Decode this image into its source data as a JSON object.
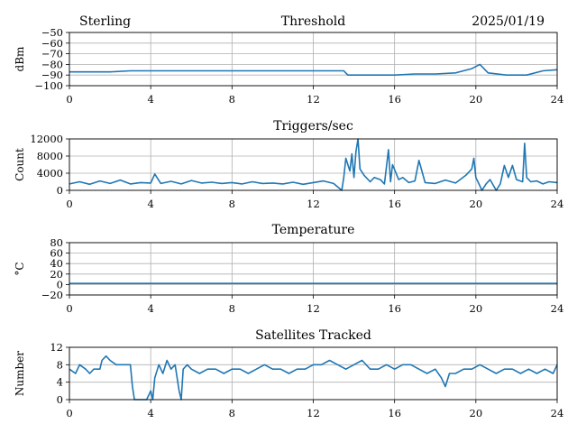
{
  "header": {
    "station": "Sterling",
    "date": "2025/01/19"
  },
  "colors": {
    "line": "#1f77b4",
    "grid": "#b0b0b0",
    "frame": "#000000"
  },
  "chart_data": [
    {
      "type": "line",
      "title": "Threshold",
      "ylabel": "dBm",
      "xlim": [
        0,
        24
      ],
      "ylim": [
        -100,
        -50
      ],
      "xticks": [
        0,
        4,
        8,
        12,
        16,
        20,
        24
      ],
      "yticks": [
        -100,
        -90,
        -80,
        -70,
        -60,
        -50
      ],
      "ytick_labels": [
        "−100",
        "−90",
        "−80",
        "−70",
        "−60",
        "−50"
      ],
      "grid": true,
      "series": [
        {
          "x": [
            0,
            1,
            2,
            3,
            4,
            5,
            6,
            7,
            8,
            9,
            10,
            11,
            12,
            13.5,
            13.7,
            15,
            16,
            17,
            18,
            19,
            19.8,
            20.2,
            20.6,
            21.5,
            22.5,
            23.3,
            24
          ],
          "y": [
            -87,
            -87,
            -87,
            -86,
            -86,
            -86,
            -86,
            -86,
            -86,
            -86,
            -86,
            -86,
            -86,
            -86,
            -90,
            -90,
            -90,
            -89,
            -89,
            -88,
            -84,
            -80,
            -88,
            -90,
            -90,
            -86,
            -85
          ]
        }
      ]
    },
    {
      "type": "line",
      "title": "Triggers/sec",
      "ylabel": "Count",
      "xlim": [
        0,
        24
      ],
      "ylim": [
        0,
        12000
      ],
      "xticks": [
        0,
        4,
        8,
        12,
        16,
        20,
        24
      ],
      "yticks": [
        0,
        4000,
        8000,
        12000
      ],
      "ytick_labels": [
        "0",
        "4000",
        "8000",
        "12000"
      ],
      "grid": true,
      "series": [
        {
          "x": [
            0,
            0.5,
            1.0,
            1.5,
            2.0,
            2.5,
            3.0,
            3.5,
            4.0,
            4.2,
            4.5,
            5.0,
            5.5,
            6.0,
            6.5,
            7.0,
            7.5,
            8.0,
            8.5,
            9.0,
            9.5,
            10.0,
            10.5,
            11.0,
            11.5,
            12.0,
            12.5,
            13.0,
            13.4,
            13.5,
            13.6,
            13.8,
            13.9,
            14.0,
            14.1,
            14.2,
            14.3,
            14.5,
            14.8,
            15.0,
            15.3,
            15.5,
            15.7,
            15.8,
            15.9,
            16.2,
            16.4,
            16.7,
            17.0,
            17.2,
            17.5,
            18.0,
            18.5,
            19.0,
            19.5,
            19.8,
            19.9,
            20.0,
            20.1,
            20.3,
            20.5,
            20.7,
            21.0,
            21.2,
            21.4,
            21.6,
            21.8,
            22.0,
            22.3,
            22.4,
            22.5,
            22.7,
            23.0,
            23.3,
            23.6,
            24.0
          ],
          "y": [
            1500,
            2000,
            1400,
            2200,
            1600,
            2400,
            1500,
            1800,
            1700,
            3800,
            1600,
            2100,
            1500,
            2300,
            1700,
            1900,
            1600,
            1800,
            1500,
            2000,
            1600,
            1700,
            1500,
            1900,
            1400,
            1800,
            2200,
            1600,
            0,
            3000,
            7500,
            4500,
            8500,
            3000,
            9000,
            12000,
            5000,
            3500,
            2000,
            3000,
            2500,
            1500,
            9500,
            2000,
            6000,
            2500,
            3000,
            1800,
            2200,
            7000,
            1800,
            1600,
            2400,
            1700,
            3500,
            5000,
            7500,
            3000,
            2000,
            0,
            1500,
            2500,
            0,
            1500,
            5800,
            3000,
            5800,
            2500,
            2000,
            11000,
            3000,
            2000,
            2200,
            1500,
            2000,
            1800
          ]
        }
      ]
    },
    {
      "type": "line",
      "title": "Temperature",
      "ylabel": "°C",
      "xlim": [
        0,
        24
      ],
      "ylim": [
        -20,
        80
      ],
      "xticks": [
        0,
        4,
        8,
        12,
        16,
        20,
        24
      ],
      "yticks": [
        -20,
        0,
        20,
        40,
        60,
        80
      ],
      "ytick_labels": [
        "−20",
        "0",
        "20",
        "40",
        "60",
        "80"
      ],
      "grid": true,
      "series": [
        {
          "x": [
            0,
            6,
            12,
            18,
            24
          ],
          "y": [
            2,
            2,
            2,
            2,
            2
          ]
        }
      ]
    },
    {
      "type": "line",
      "title": "Satellites Tracked",
      "ylabel": "Number",
      "xlim": [
        0,
        24
      ],
      "ylim": [
        0,
        12
      ],
      "xticks": [
        0,
        4,
        8,
        12,
        16,
        20,
        24
      ],
      "yticks": [
        0,
        4,
        8,
        12
      ],
      "ytick_labels": [
        "0",
        "4",
        "8",
        "12"
      ],
      "grid": true,
      "series": [
        {
          "x": [
            0,
            0.3,
            0.5,
            0.8,
            1.0,
            1.2,
            1.5,
            1.6,
            1.8,
            2.0,
            2.3,
            2.6,
            3.0,
            3.1,
            3.2,
            3.6,
            3.8,
            3.9,
            4.0,
            4.1,
            4.2,
            4.4,
            4.6,
            4.8,
            5.0,
            5.2,
            5.4,
            5.5,
            5.6,
            5.8,
            6.0,
            6.4,
            6.8,
            7.2,
            7.6,
            8.0,
            8.4,
            8.8,
            9.2,
            9.6,
            10.0,
            10.4,
            10.8,
            11.2,
            11.6,
            12.0,
            12.4,
            12.8,
            13.2,
            13.6,
            14.0,
            14.4,
            14.8,
            15.2,
            15.6,
            16.0,
            16.4,
            16.8,
            17.2,
            17.6,
            18.0,
            18.3,
            18.5,
            18.7,
            19.0,
            19.4,
            19.8,
            20.2,
            20.6,
            21.0,
            21.4,
            21.8,
            22.2,
            22.6,
            23.0,
            23.4,
            23.8,
            24.0
          ],
          "y": [
            7,
            6,
            8,
            7,
            6,
            7,
            7,
            9,
            10,
            9,
            8,
            8,
            8,
            3,
            0,
            0,
            0,
            1,
            2,
            0,
            5,
            8,
            6,
            9,
            7,
            8,
            2,
            0,
            7,
            8,
            7,
            6,
            7,
            7,
            6,
            7,
            7,
            6,
            7,
            8,
            7,
            7,
            6,
            7,
            7,
            8,
            8,
            9,
            8,
            7,
            8,
            9,
            7,
            7,
            8,
            7,
            8,
            8,
            7,
            6,
            7,
            5,
            3,
            6,
            6,
            7,
            7,
            8,
            7,
            6,
            7,
            7,
            6,
            7,
            6,
            7,
            6,
            8
          ]
        }
      ]
    }
  ]
}
